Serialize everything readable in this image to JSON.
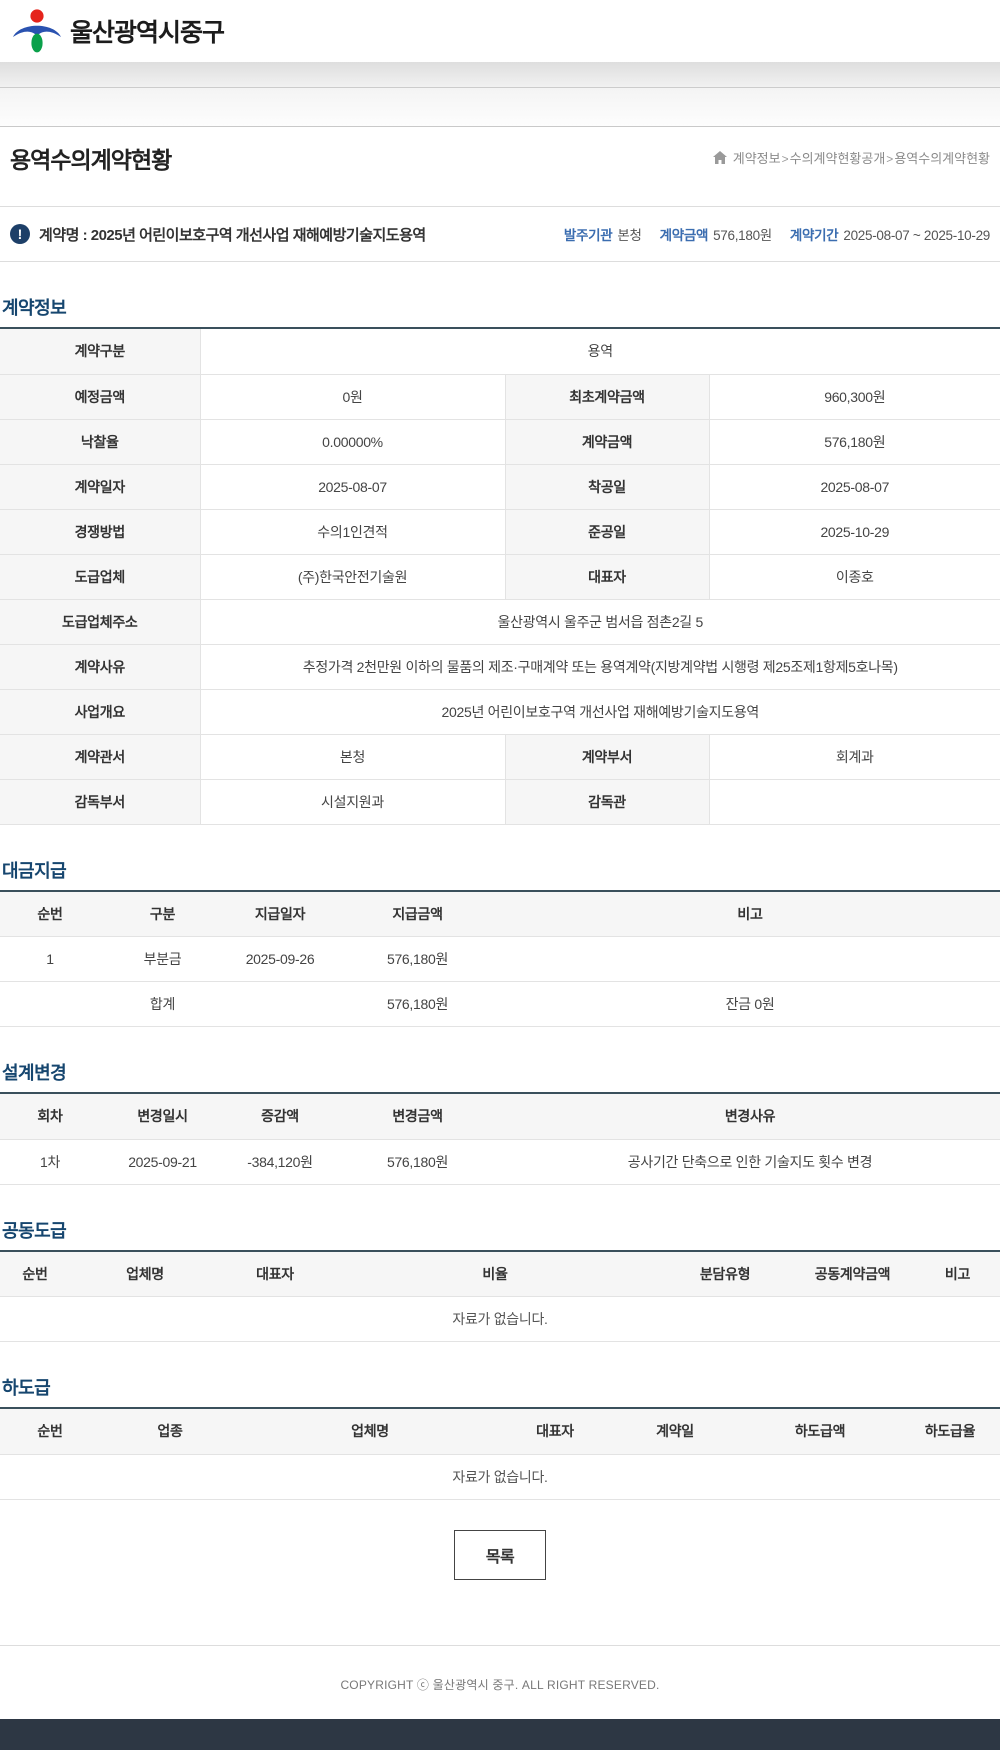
{
  "brand": {
    "name": "울산광역시중구"
  },
  "page": {
    "title": "용역수의계약현황"
  },
  "breadcrumb": {
    "items": [
      "계약정보",
      "수의계약현황공개",
      "용역수의계약현황"
    ]
  },
  "contract_bar": {
    "name_line": "계약명 : 2025년 어린이보호구역 개선사업 재해예방기술지도용역",
    "meta": [
      {
        "label": "발주기관",
        "value": "본청"
      },
      {
        "label": "계약금액",
        "value": "576,180원"
      },
      {
        "label": "계약기간",
        "value": "2025-08-07 ~ 2025-10-29"
      }
    ]
  },
  "colors": {
    "accent_navy": "#16466f",
    "meta_label_blue": "#3b6db0",
    "info_icon_bg": "#1d3f68",
    "section_rule": "#3a505c",
    "footer_bar": "#2d3744",
    "logo_red": "#e5231b",
    "logo_blue": "#2a52b0",
    "logo_green": "#0aa04a"
  },
  "sections": {
    "info": {
      "title": "계약정보",
      "widths": [
        "20%",
        "30.5%",
        "20.4%",
        "29.1%"
      ],
      "rows": [
        [
          {
            "t": "th",
            "v": "계약구분"
          },
          {
            "t": "td",
            "v": "용역",
            "span": 3
          }
        ],
        [
          {
            "t": "th",
            "v": "예정금액"
          },
          {
            "t": "td",
            "v": "0원"
          },
          {
            "t": "th",
            "v": "최초계약금액"
          },
          {
            "t": "td",
            "v": "960,300원"
          }
        ],
        [
          {
            "t": "th",
            "v": "낙찰율"
          },
          {
            "t": "td",
            "v": "0.00000%"
          },
          {
            "t": "th",
            "v": "계약금액"
          },
          {
            "t": "td",
            "v": "576,180원"
          }
        ],
        [
          {
            "t": "th",
            "v": "계약일자"
          },
          {
            "t": "td",
            "v": "2025-08-07"
          },
          {
            "t": "th",
            "v": "착공일"
          },
          {
            "t": "td",
            "v": "2025-08-07"
          }
        ],
        [
          {
            "t": "th",
            "v": "경쟁방법"
          },
          {
            "t": "td",
            "v": "수의1인견적"
          },
          {
            "t": "th",
            "v": "준공일"
          },
          {
            "t": "td",
            "v": "2025-10-29"
          }
        ],
        [
          {
            "t": "th",
            "v": "도급업체"
          },
          {
            "t": "td",
            "v": "(주)한국안전기술원"
          },
          {
            "t": "th",
            "v": "대표자"
          },
          {
            "t": "td",
            "v": "이종호"
          }
        ],
        [
          {
            "t": "th",
            "v": "도급업체주소"
          },
          {
            "t": "td",
            "v": "울산광역시 울주군 범서읍 점촌2길 5",
            "span": 3
          }
        ],
        [
          {
            "t": "th",
            "v": "계약사유"
          },
          {
            "t": "td",
            "v": "추정가격 2천만원 이하의 물품의 제조·구매계약 또는 용역계약(지방계약법 시행령 제25조제1항제5호나목)",
            "span": 3
          }
        ],
        [
          {
            "t": "th",
            "v": "사업개요"
          },
          {
            "t": "td",
            "v": "2025년 어린이보호구역 개선사업 재해예방기술지도용역",
            "span": 3
          }
        ],
        [
          {
            "t": "th",
            "v": "계약관서"
          },
          {
            "t": "td",
            "v": "본청"
          },
          {
            "t": "th",
            "v": "계약부서"
          },
          {
            "t": "td",
            "v": "회계과"
          }
        ],
        [
          {
            "t": "th",
            "v": "감독부서"
          },
          {
            "t": "td",
            "v": "시설지원과"
          },
          {
            "t": "th",
            "v": "감독관"
          },
          {
            "t": "td",
            "v": ""
          }
        ]
      ]
    },
    "payment": {
      "title": "대금지급",
      "headers": [
        "순번",
        "구분",
        "지급일자",
        "지급금액",
        "비고"
      ],
      "widths": [
        "10%",
        "12.5%",
        "11%",
        "16.5%",
        "50%"
      ],
      "rows": [
        [
          "1",
          "부분금",
          "2025-09-26",
          "576,180원",
          ""
        ],
        [
          "",
          "합계",
          "",
          "576,180원",
          "잔금 0원"
        ]
      ]
    },
    "design_change": {
      "title": "설계변경",
      "headers": [
        "회차",
        "변경일시",
        "증감액",
        "변경금액",
        "변경사유"
      ],
      "widths": [
        "10%",
        "12.5%",
        "11%",
        "16.5%",
        "50%"
      ],
      "rows": [
        [
          "1차",
          "2025-09-21",
          "-384,120원",
          "576,180원",
          "공사기간 단축으로 인한 기술지도 횟수 변경"
        ]
      ]
    },
    "joint": {
      "title": "공동도급",
      "headers": [
        "순번",
        "업체명",
        "대표자",
        "비율",
        "분담유형",
        "공동계약금액",
        "비고"
      ],
      "widths": [
        "7%",
        "15%",
        "11%",
        "33%",
        "13%",
        "12.5%",
        "8.5%"
      ],
      "rows": [],
      "empty_text": "자료가 없습니다."
    },
    "subcontract": {
      "title": "하도급",
      "headers": [
        "순번",
        "업종",
        "업체명",
        "대표자",
        "계약일",
        "하도급액",
        "하도급율"
      ],
      "widths": [
        "10%",
        "14%",
        "26%",
        "11%",
        "13%",
        "16%",
        "10%"
      ],
      "rows": [],
      "empty_text": "자료가 없습니다."
    }
  },
  "list_button": {
    "label": "목록"
  },
  "footer": {
    "copyright": "COPYRIGHT ⓒ 울산광역시 중구. ALL RIGHT RESERVED."
  },
  "icons": {
    "info": "info-icon",
    "home": "home-icon"
  }
}
